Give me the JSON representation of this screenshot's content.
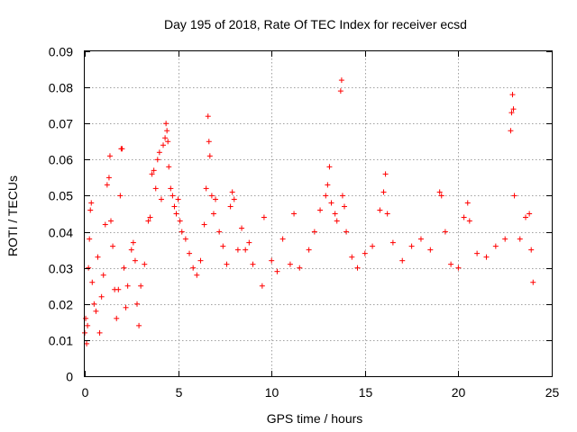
{
  "chart_data": {
    "type": "scatter",
    "title": "Day 195 of 2018, Rate Of TEC Index for receiver ecsd",
    "xlabel": "GPS time / hours",
    "ylabel": "ROTI / TECUs",
    "xlim": [
      0,
      25
    ],
    "ylim": [
      0,
      0.09
    ],
    "xticks": [
      0,
      5,
      10,
      15,
      20,
      25
    ],
    "yticks": [
      0,
      0.01,
      0.02,
      0.03,
      0.04,
      0.05,
      0.06,
      0.07,
      0.08,
      0.09
    ],
    "xtick_labels": [
      "0",
      "5",
      "10",
      "15",
      "20",
      "25"
    ],
    "ytick_labels": [
      "0",
      "0.01",
      "0.02",
      "0.03",
      "0.04",
      "0.05",
      "0.06",
      "0.07",
      "0.08",
      "0.09"
    ],
    "grid": true,
    "marker": "plus",
    "color": "#ff0000",
    "series": [
      {
        "points": [
          [
            0.0,
            0.012
          ],
          [
            0.05,
            0.016
          ],
          [
            0.1,
            0.009
          ],
          [
            0.15,
            0.014
          ],
          [
            0.2,
            0.03
          ],
          [
            0.25,
            0.038
          ],
          [
            0.3,
            0.046
          ],
          [
            0.35,
            0.048
          ],
          [
            0.4,
            0.026
          ],
          [
            0.5,
            0.02
          ],
          [
            0.6,
            0.018
          ],
          [
            0.7,
            0.033
          ],
          [
            0.8,
            0.012
          ],
          [
            0.9,
            0.022
          ],
          [
            1.0,
            0.028
          ],
          [
            1.1,
            0.042
          ],
          [
            1.2,
            0.053
          ],
          [
            1.3,
            0.055
          ],
          [
            1.35,
            0.061
          ],
          [
            1.4,
            0.043
          ],
          [
            1.5,
            0.036
          ],
          [
            1.6,
            0.024
          ],
          [
            1.7,
            0.016
          ],
          [
            1.8,
            0.024
          ],
          [
            1.9,
            0.05
          ],
          [
            1.95,
            0.063
          ],
          [
            2.0,
            0.063
          ],
          [
            2.1,
            0.03
          ],
          [
            2.2,
            0.019
          ],
          [
            2.3,
            0.025
          ],
          [
            2.5,
            0.035
          ],
          [
            2.6,
            0.037
          ],
          [
            2.7,
            0.032
          ],
          [
            2.8,
            0.02
          ],
          [
            2.9,
            0.014
          ],
          [
            3.0,
            0.025
          ],
          [
            3.2,
            0.031
          ],
          [
            3.4,
            0.043
          ],
          [
            3.5,
            0.044
          ],
          [
            3.6,
            0.056
          ],
          [
            3.7,
            0.057
          ],
          [
            3.8,
            0.052
          ],
          [
            3.9,
            0.06
          ],
          [
            4.0,
            0.062
          ],
          [
            4.1,
            0.049
          ],
          [
            4.2,
            0.064
          ],
          [
            4.3,
            0.066
          ],
          [
            4.35,
            0.07
          ],
          [
            4.4,
            0.068
          ],
          [
            4.45,
            0.065
          ],
          [
            4.5,
            0.058
          ],
          [
            4.6,
            0.052
          ],
          [
            4.7,
            0.05
          ],
          [
            4.8,
            0.047
          ],
          [
            4.9,
            0.045
          ],
          [
            5.0,
            0.049
          ],
          [
            5.1,
            0.043
          ],
          [
            5.2,
            0.04
          ],
          [
            5.4,
            0.038
          ],
          [
            5.6,
            0.034
          ],
          [
            5.8,
            0.03
          ],
          [
            6.0,
            0.028
          ],
          [
            6.2,
            0.032
          ],
          [
            6.4,
            0.042
          ],
          [
            6.5,
            0.052
          ],
          [
            6.6,
            0.072
          ],
          [
            6.65,
            0.065
          ],
          [
            6.7,
            0.061
          ],
          [
            6.8,
            0.05
          ],
          [
            6.9,
            0.045
          ],
          [
            7.0,
            0.049
          ],
          [
            7.2,
            0.04
          ],
          [
            7.4,
            0.036
          ],
          [
            7.6,
            0.031
          ],
          [
            7.8,
            0.047
          ],
          [
            7.9,
            0.051
          ],
          [
            8.0,
            0.049
          ],
          [
            8.2,
            0.035
          ],
          [
            8.4,
            0.041
          ],
          [
            8.6,
            0.035
          ],
          [
            8.8,
            0.037
          ],
          [
            9.0,
            0.031
          ],
          [
            9.5,
            0.025
          ],
          [
            9.6,
            0.044
          ],
          [
            10.0,
            0.032
          ],
          [
            10.3,
            0.029
          ],
          [
            10.6,
            0.038
          ],
          [
            11.0,
            0.031
          ],
          [
            11.2,
            0.045
          ],
          [
            11.5,
            0.03
          ],
          [
            12.0,
            0.035
          ],
          [
            12.3,
            0.04
          ],
          [
            12.6,
            0.046
          ],
          [
            12.9,
            0.05
          ],
          [
            13.0,
            0.053
          ],
          [
            13.1,
            0.058
          ],
          [
            13.2,
            0.048
          ],
          [
            13.4,
            0.045
          ],
          [
            13.5,
            0.043
          ],
          [
            13.7,
            0.079
          ],
          [
            13.75,
            0.082
          ],
          [
            13.8,
            0.05
          ],
          [
            13.9,
            0.047
          ],
          [
            14.0,
            0.04
          ],
          [
            14.3,
            0.033
          ],
          [
            14.6,
            0.03
          ],
          [
            15.0,
            0.034
          ],
          [
            15.4,
            0.036
          ],
          [
            15.8,
            0.046
          ],
          [
            16.0,
            0.051
          ],
          [
            16.1,
            0.056
          ],
          [
            16.2,
            0.045
          ],
          [
            16.5,
            0.037
          ],
          [
            17.0,
            0.032
          ],
          [
            17.5,
            0.036
          ],
          [
            18.0,
            0.038
          ],
          [
            18.5,
            0.035
          ],
          [
            19.0,
            0.051
          ],
          [
            19.1,
            0.05
          ],
          [
            19.3,
            0.04
          ],
          [
            19.6,
            0.031
          ],
          [
            20.0,
            0.03
          ],
          [
            20.3,
            0.044
          ],
          [
            20.5,
            0.048
          ],
          [
            20.6,
            0.043
          ],
          [
            21.0,
            0.034
          ],
          [
            21.5,
            0.033
          ],
          [
            22.0,
            0.036
          ],
          [
            22.5,
            0.038
          ],
          [
            22.8,
            0.068
          ],
          [
            22.85,
            0.073
          ],
          [
            22.9,
            0.078
          ],
          [
            22.95,
            0.074
          ],
          [
            23.0,
            0.05
          ],
          [
            23.3,
            0.038
          ],
          [
            23.6,
            0.044
          ],
          [
            23.8,
            0.045
          ],
          [
            23.9,
            0.035
          ],
          [
            24.0,
            0.026
          ]
        ]
      }
    ]
  }
}
